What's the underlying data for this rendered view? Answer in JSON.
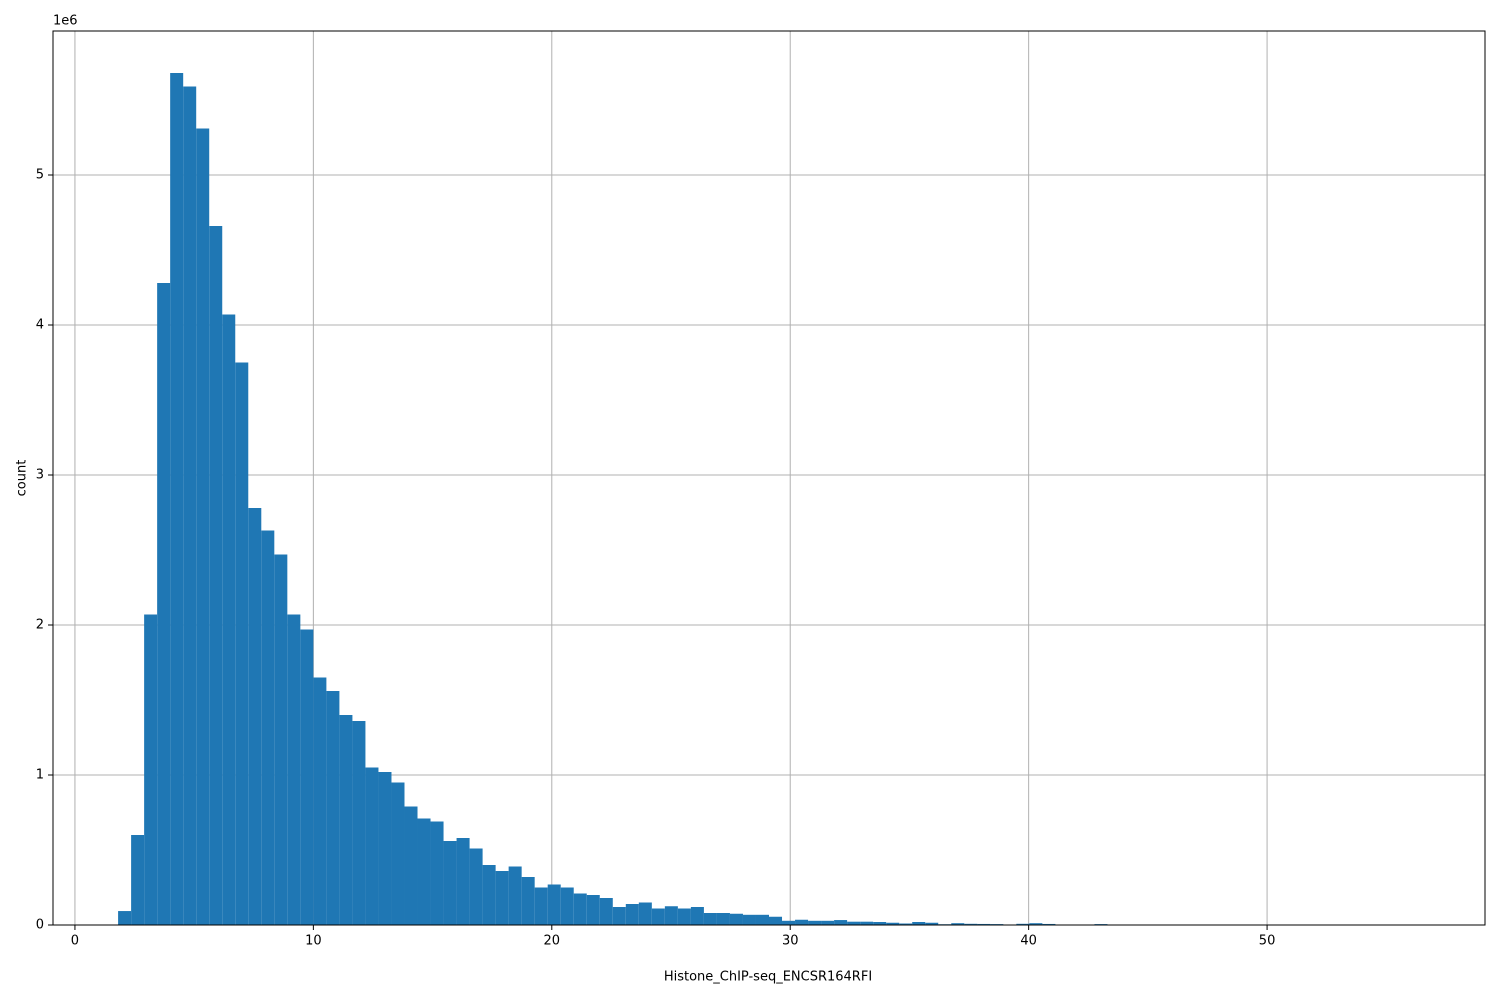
{
  "chart_data": {
    "type": "histogram",
    "xlabel": "Histone_ChIP-seq_ENCSR164RFI",
    "ylabel": "count",
    "y_offset_label": "1e6",
    "color": "#1f77b4",
    "grid": true,
    "bins": [
      1.81,
      2.356,
      2.902,
      3.448,
      3.994,
      4.54,
      5.086,
      5.632,
      6.178,
      6.724,
      7.27,
      7.816,
      8.362,
      8.908,
      9.454,
      10.0,
      10.546,
      11.092,
      11.638,
      12.184,
      12.73,
      13.276,
      13.822,
      14.368,
      14.914,
      15.46,
      16.006,
      16.552,
      17.098,
      17.644,
      18.19,
      18.736,
      19.282,
      19.828,
      20.374,
      20.92,
      21.466,
      22.012,
      22.558,
      23.104,
      23.65,
      24.196,
      24.742,
      25.288,
      25.834,
      26.38,
      26.926,
      27.472,
      28.018,
      28.564,
      29.11,
      29.656,
      30.202,
      30.748,
      31.294,
      31.84,
      32.386,
      32.932,
      33.478,
      34.024,
      34.57,
      35.116,
      35.662,
      36.208,
      36.754,
      37.3,
      37.846,
      38.392,
      38.938,
      39.484,
      40.03,
      40.576,
      41.122,
      41.668,
      42.214,
      42.76,
      43.306,
      43.852,
      44.398,
      44.944,
      45.49,
      46.036,
      46.582,
      47.128,
      47.674,
      48.22,
      48.766,
      49.312,
      49.858,
      50.404,
      50.95,
      51.496,
      52.042,
      52.588,
      53.134,
      53.68,
      54.226,
      54.772,
      55.318,
      55.864,
      56.41
    ],
    "counts": [
      93000,
      600000,
      2070000,
      4280000,
      5680000,
      5590000,
      5310000,
      4660000,
      4070000,
      3750000,
      2780000,
      2630000,
      2470000,
      2070000,
      1970000,
      1650000,
      1560000,
      1400000,
      1360000,
      1050000,
      1020000,
      950000,
      790000,
      710000,
      690000,
      560000,
      580000,
      510000,
      400000,
      360000,
      390000,
      320000,
      250000,
      270000,
      250000,
      210000,
      200000,
      180000,
      120000,
      140000,
      150000,
      110000,
      125000,
      110000,
      120000,
      80000,
      80000,
      75000,
      68000,
      68000,
      55000,
      28000,
      35000,
      28000,
      28000,
      33000,
      22000,
      22000,
      20000,
      15000,
      10000,
      20000,
      15000,
      5000,
      12000,
      8000,
      7000,
      6000,
      3000,
      8000,
      12000,
      7000,
      2000,
      2000,
      1000,
      6000,
      1000,
      1000,
      0,
      1000,
      0,
      0,
      0,
      0,
      0,
      1000,
      0,
      0,
      0,
      0,
      0,
      0,
      0,
      0,
      0,
      0,
      0,
      0,
      0,
      1000
    ],
    "xlim": [
      -0.92,
      59.14
    ],
    "ylim": [
      0,
      5960000
    ],
    "xticks": [
      0,
      10,
      20,
      30,
      40,
      50
    ],
    "yticks": [
      0,
      {
        "value": 1000000,
        "label": "1"
      },
      {
        "value": 2000000,
        "label": "2"
      },
      {
        "value": 3000000,
        "label": "3"
      },
      {
        "value": 4000000,
        "label": "4"
      },
      {
        "value": 5000000,
        "label": "5"
      }
    ]
  }
}
